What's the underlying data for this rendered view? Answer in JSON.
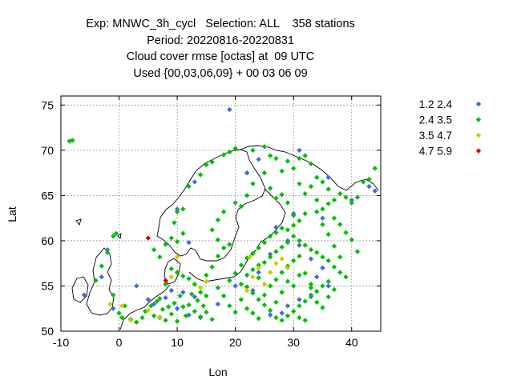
{
  "chart_data": {
    "type": "scatter",
    "title_lines": [
      "Exp: MNWC_3h_cycl   Selection: ALL    358 stations",
      "Period: 20220816-20220831",
      "Cloud cover rmse [octas] at  09 UTC",
      "Used {00,03,06,09} + 00 03 06 09"
    ],
    "xlabel": "Lon",
    "ylabel": "Lat",
    "xlim": [
      -10,
      45
    ],
    "ylim": [
      50,
      76
    ],
    "xticks": [
      -10,
      0,
      10,
      20,
      30,
      40
    ],
    "yticks": [
      50,
      55,
      60,
      65,
      70,
      75
    ],
    "grid": true,
    "legend_position": "outside-right-top",
    "series": [
      {
        "name": "1.2 2.4",
        "color": "#4169e1",
        "points": [
          [
            19,
            74.5
          ],
          [
            -2,
            59
          ],
          [
            -3,
            56
          ],
          [
            3,
            55
          ],
          [
            5,
            53.5
          ],
          [
            7,
            51.5
          ],
          [
            8,
            53.7
          ],
          [
            9,
            54.5
          ],
          [
            10,
            52.5
          ],
          [
            12,
            51.8
          ],
          [
            13,
            53.8
          ],
          [
            14,
            51.5
          ],
          [
            12,
            59.8
          ],
          [
            10,
            63.5
          ],
          [
            13,
            66.5
          ],
          [
            22,
            67.5
          ],
          [
            24,
            69
          ],
          [
            31,
            70
          ],
          [
            36,
            67
          ],
          [
            27,
            61.5
          ],
          [
            29,
            60
          ],
          [
            31,
            59.5
          ],
          [
            33,
            58
          ],
          [
            35,
            57
          ],
          [
            34,
            56
          ],
          [
            36,
            55
          ],
          [
            33,
            54
          ],
          [
            31,
            53.5
          ],
          [
            29,
            52.8
          ],
          [
            28,
            52
          ],
          [
            26,
            51.8
          ],
          [
            23,
            54.5
          ],
          [
            24,
            56.5
          ],
          [
            26,
            58.5
          ],
          [
            20,
            55
          ],
          [
            17,
            53
          ],
          [
            35,
            62.5
          ],
          [
            40,
            64.5
          ],
          [
            43,
            66
          ],
          [
            44,
            65.5
          ],
          [
            30,
            63
          ],
          [
            -6,
            54
          ],
          [
            -1,
            52.5
          ],
          [
            11,
            54.3
          ],
          [
            6,
            53
          ]
        ]
      },
      {
        "name": "2.4 3.5",
        "color": "#00c000",
        "points": [
          [
            -8.5,
            71
          ],
          [
            -8,
            71.1
          ],
          [
            -1,
            60.5
          ],
          [
            -0.5,
            60.8
          ],
          [
            -2,
            58.7
          ],
          [
            -3,
            57.2
          ],
          [
            -4,
            55.6
          ],
          [
            -1,
            54
          ],
          [
            0,
            52
          ],
          [
            0.5,
            51.5
          ],
          [
            1,
            52.8
          ],
          [
            2,
            51.3
          ],
          [
            3,
            51
          ],
          [
            4,
            51.5
          ],
          [
            4.5,
            52.2
          ],
          [
            5.5,
            52.8
          ],
          [
            6,
            51.7
          ],
          [
            6.5,
            53.3
          ],
          [
            7,
            53.6
          ],
          [
            7.5,
            52.4
          ],
          [
            8,
            51.2
          ],
          [
            8.5,
            52.7
          ],
          [
            9,
            51.9
          ],
          [
            9.5,
            53.1
          ],
          [
            10,
            51.1
          ],
          [
            10.5,
            53.9
          ],
          [
            11,
            52.7
          ],
          [
            11.5,
            51.7
          ],
          [
            12,
            52.9
          ],
          [
            12.5,
            54.1
          ],
          [
            13,
            52.2
          ],
          [
            13.5,
            53.4
          ],
          [
            14,
            51.6
          ],
          [
            14.5,
            52.8
          ],
          [
            15,
            53.9
          ],
          [
            6,
            59
          ],
          [
            7,
            58.2
          ],
          [
            8,
            59.6
          ],
          [
            9,
            60.3
          ],
          [
            10,
            59.9
          ],
          [
            11,
            60.8
          ],
          [
            9.5,
            62
          ],
          [
            10,
            63.2
          ],
          [
            11,
            63.5
          ],
          [
            12,
            66
          ],
          [
            14,
            67.3
          ],
          [
            15,
            68.4
          ],
          [
            16,
            68.7
          ],
          [
            18,
            69.5
          ],
          [
            19,
            69.8
          ],
          [
            20,
            70.2
          ],
          [
            23,
            70
          ],
          [
            25,
            70.4
          ],
          [
            26,
            69.4
          ],
          [
            27,
            69.1
          ],
          [
            28,
            67.7
          ],
          [
            29,
            68.8
          ],
          [
            30,
            68
          ],
          [
            31,
            69.1
          ],
          [
            32,
            69.4
          ],
          [
            33,
            68.5
          ],
          [
            34,
            67
          ],
          [
            35,
            66.5
          ],
          [
            36,
            65.7
          ],
          [
            37,
            64.5
          ],
          [
            38,
            65.2
          ],
          [
            39,
            64.8
          ],
          [
            40,
            64.2
          ],
          [
            41,
            64.8
          ],
          [
            42,
            66.5
          ],
          [
            43,
            66.8
          ],
          [
            44,
            68
          ],
          [
            34,
            64.5
          ],
          [
            32,
            63
          ],
          [
            31,
            62.2
          ],
          [
            30,
            61.7
          ],
          [
            29,
            61.2
          ],
          [
            30,
            60.5
          ],
          [
            31,
            60
          ],
          [
            32,
            59.5
          ],
          [
            33,
            59
          ],
          [
            34,
            58.7
          ],
          [
            35,
            58.2
          ],
          [
            36,
            57.8
          ],
          [
            37,
            57.1
          ],
          [
            38,
            56.5
          ],
          [
            39,
            56
          ],
          [
            36,
            55.5
          ],
          [
            35,
            55
          ],
          [
            34,
            54.4
          ],
          [
            33,
            53.8
          ],
          [
            32,
            53.3
          ],
          [
            31,
            52.8
          ],
          [
            30,
            52.2
          ],
          [
            29,
            51.7
          ],
          [
            28,
            51.2
          ],
          [
            27,
            51.5
          ],
          [
            26,
            52.3
          ],
          [
            25,
            52.9
          ],
          [
            24,
            53.5
          ],
          [
            23,
            54.2
          ],
          [
            22,
            54.9
          ],
          [
            21,
            55.2
          ],
          [
            22,
            56.2
          ],
          [
            23,
            56.8
          ],
          [
            24,
            57.3
          ],
          [
            25,
            57.6
          ],
          [
            26,
            58.2
          ],
          [
            27,
            58.8
          ],
          [
            28,
            59.3
          ],
          [
            29,
            59.8
          ],
          [
            21,
            57.3
          ],
          [
            22,
            58.1
          ],
          [
            23,
            58.6
          ],
          [
            24,
            59.2
          ],
          [
            25,
            59.8
          ],
          [
            26,
            60.5
          ],
          [
            27,
            60.9
          ],
          [
            28,
            61.4
          ],
          [
            15,
            56.2
          ],
          [
            16,
            57.1
          ],
          [
            17,
            58.3
          ],
          [
            18,
            59.2
          ],
          [
            19,
            59.6
          ],
          [
            17,
            60.1
          ],
          [
            16,
            61.2
          ],
          [
            17,
            62.3
          ],
          [
            18,
            63.2
          ],
          [
            20,
            64.2
          ],
          [
            21,
            63.8
          ],
          [
            22,
            65
          ],
          [
            23,
            66.3
          ],
          [
            25,
            67.5
          ],
          [
            26,
            65.8
          ],
          [
            27,
            64.7
          ],
          [
            28,
            65.1
          ],
          [
            29,
            64.2
          ],
          [
            30,
            62.8
          ],
          [
            31,
            66.3
          ],
          [
            32,
            65.2
          ],
          [
            33,
            66
          ],
          [
            34,
            63.2
          ],
          [
            35,
            63.5
          ],
          [
            36,
            64.1
          ],
          [
            37,
            62.5
          ],
          [
            38,
            61.8
          ],
          [
            39,
            60.9
          ],
          [
            40,
            60.1
          ],
          [
            41,
            58.8
          ],
          [
            38,
            58.2
          ],
          [
            37,
            59.4
          ],
          [
            36,
            60.7
          ],
          [
            35,
            61.8
          ],
          [
            22,
            52.5
          ],
          [
            21,
            53.5
          ],
          [
            20,
            52.1
          ],
          [
            19,
            52.8
          ],
          [
            18,
            53.9
          ],
          [
            17,
            54.8
          ],
          [
            16,
            51.3
          ],
          [
            15,
            52.1
          ],
          [
            14,
            54.3
          ],
          [
            13,
            55.2
          ],
          [
            12,
            55.8
          ],
          [
            11,
            56.1
          ],
          [
            10,
            56.5
          ],
          [
            9,
            56.9
          ],
          [
            8,
            55.2
          ],
          [
            25,
            54
          ],
          [
            26,
            55
          ],
          [
            27,
            55.7
          ],
          [
            28,
            56.5
          ],
          [
            29,
            57.2
          ],
          [
            30,
            57.8
          ],
          [
            31,
            58.3
          ],
          [
            32,
            56.4
          ],
          [
            33,
            55.2
          ],
          [
            34,
            53.2
          ],
          [
            35,
            52.6
          ],
          [
            36,
            53.8
          ],
          [
            37,
            54.6
          ],
          [
            31,
            51.5
          ],
          [
            32,
            51.2
          ],
          [
            33,
            54.8
          ],
          [
            24,
            55.9
          ],
          [
            19,
            55.6
          ],
          [
            20,
            56.4
          ],
          [
            27,
            53.2
          ],
          [
            28,
            54.3
          ],
          [
            24,
            51.4
          ],
          [
            23,
            52
          ],
          [
            30,
            55
          ],
          [
            31,
            56.2
          ],
          [
            29,
            55.5
          ]
        ]
      },
      {
        "name": "3.5 4.7",
        "color": "#cccc00",
        "points": [
          [
            -1.5,
            53
          ],
          [
            0.5,
            52.8
          ],
          [
            2,
            51.2
          ],
          [
            5,
            52.3
          ],
          [
            7,
            51.6
          ],
          [
            9,
            56
          ],
          [
            10,
            58.2
          ],
          [
            14,
            54.8
          ],
          [
            15,
            55.5
          ],
          [
            22,
            54.5
          ],
          [
            23,
            56
          ],
          [
            24,
            57
          ],
          [
            26,
            56.5
          ],
          [
            27,
            57.5
          ],
          [
            28,
            58
          ],
          [
            29,
            57
          ],
          [
            25,
            55.2
          ],
          [
            22.5,
            58.2
          ]
        ]
      },
      {
        "name": "4.7 5.9",
        "color": "#dd0000",
        "points": [
          [
            5,
            60.3
          ],
          [
            8,
            55.6
          ]
        ]
      }
    ]
  }
}
